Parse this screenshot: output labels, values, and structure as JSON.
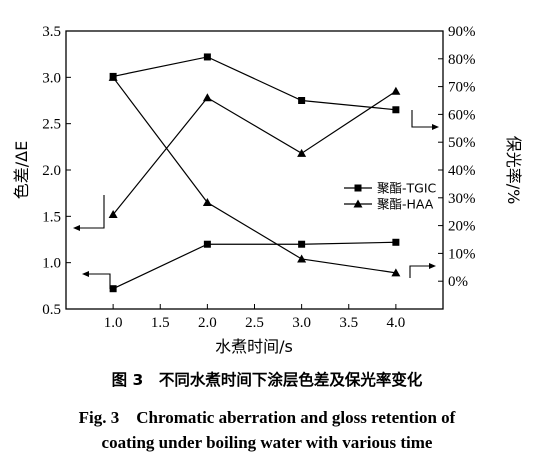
{
  "chart_data": {
    "type": "line",
    "x": [
      1.0,
      2.0,
      3.0,
      4.0
    ],
    "xlabel": "水煮时间/s",
    "xlim": [
      0.5,
      4.5
    ],
    "xticks": [
      "1.0",
      "1.5",
      "2.0",
      "2.5",
      "3.0",
      "3.5",
      "4.0"
    ],
    "ylabel_left": "色差/ΔE",
    "ylim_left": [
      0.5,
      3.5
    ],
    "yticks_left": [
      "0.5",
      "1.0",
      "1.5",
      "2.0",
      "2.5",
      "3.0",
      "3.5"
    ],
    "ylabel_right": "保光率/%",
    "ylim_right": [
      -10,
      90
    ],
    "yticks_right": [
      "0%",
      "10%",
      "20%",
      "30%",
      "40%",
      "50%",
      "60%",
      "70%",
      "80%",
      "90%"
    ],
    "grid": false,
    "legend_position": "middle-right",
    "series": [
      {
        "name": "聚酯-TGIC",
        "marker": "square",
        "axis": "left",
        "metric": "色差",
        "values": [
          3.01,
          3.22,
          2.75,
          2.65
        ]
      },
      {
        "name": "聚酯-HAA",
        "marker": "triangle",
        "axis": "left",
        "metric": "色差",
        "values": [
          1.52,
          2.78,
          2.18,
          2.85
        ]
      },
      {
        "name": "聚酯-TGIC",
        "marker": "square",
        "axis": "right",
        "metric": "保光率",
        "values": [
          -2.7,
          13.3,
          13.3,
          14.0
        ]
      },
      {
        "name": "聚酯-HAA",
        "marker": "triangle",
        "axis": "right",
        "metric": "保光率",
        "values": [
          73.3,
          28.3,
          8.0,
          3.0
        ]
      }
    ]
  },
  "caption": {
    "zh": "图 3　不同水煮时间下涂层色差及保光率变化",
    "en_line1": "Fig. 3　Chromatic aberration and gloss retention of",
    "en_line2": "coating under boiling water with various time"
  }
}
